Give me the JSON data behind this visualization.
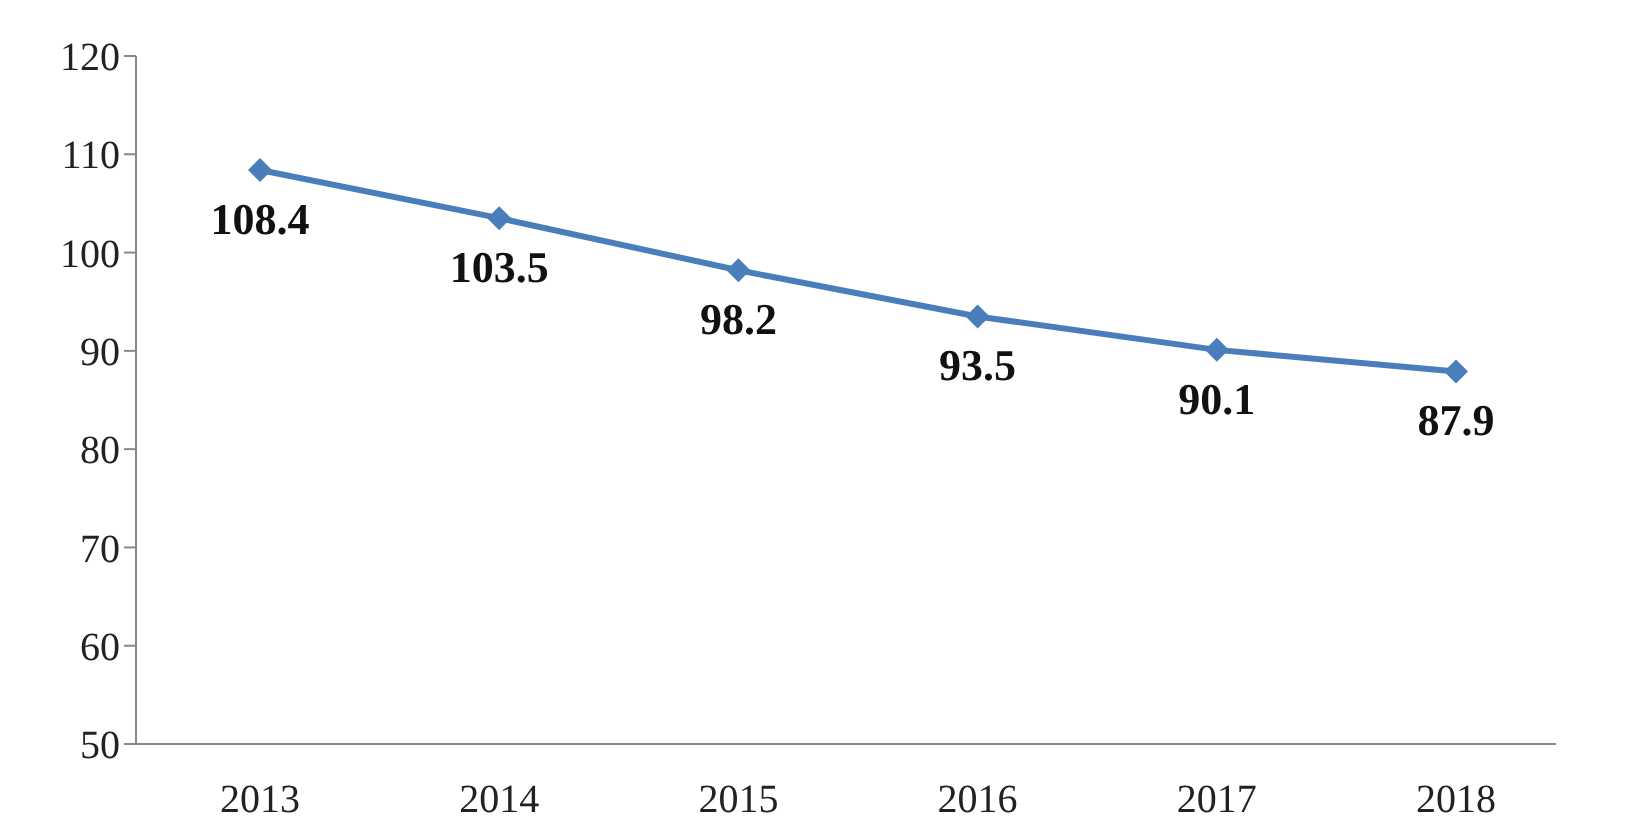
{
  "chart_data": {
    "type": "line",
    "categories": [
      "2013",
      "2014",
      "2015",
      "2016",
      "2017",
      "2018"
    ],
    "series": [
      {
        "color": "#4a7ebb",
        "values": [
          108.4,
          103.5,
          98.2,
          93.5,
          90.1,
          87.9
        ]
      }
    ],
    "ylim": [
      50,
      120
    ],
    "yticks": [
      50,
      60,
      70,
      80,
      90,
      100,
      110,
      120
    ],
    "grid": false,
    "legend": false,
    "marker": "diamond",
    "line_style": "solid",
    "data_labels": true
  }
}
